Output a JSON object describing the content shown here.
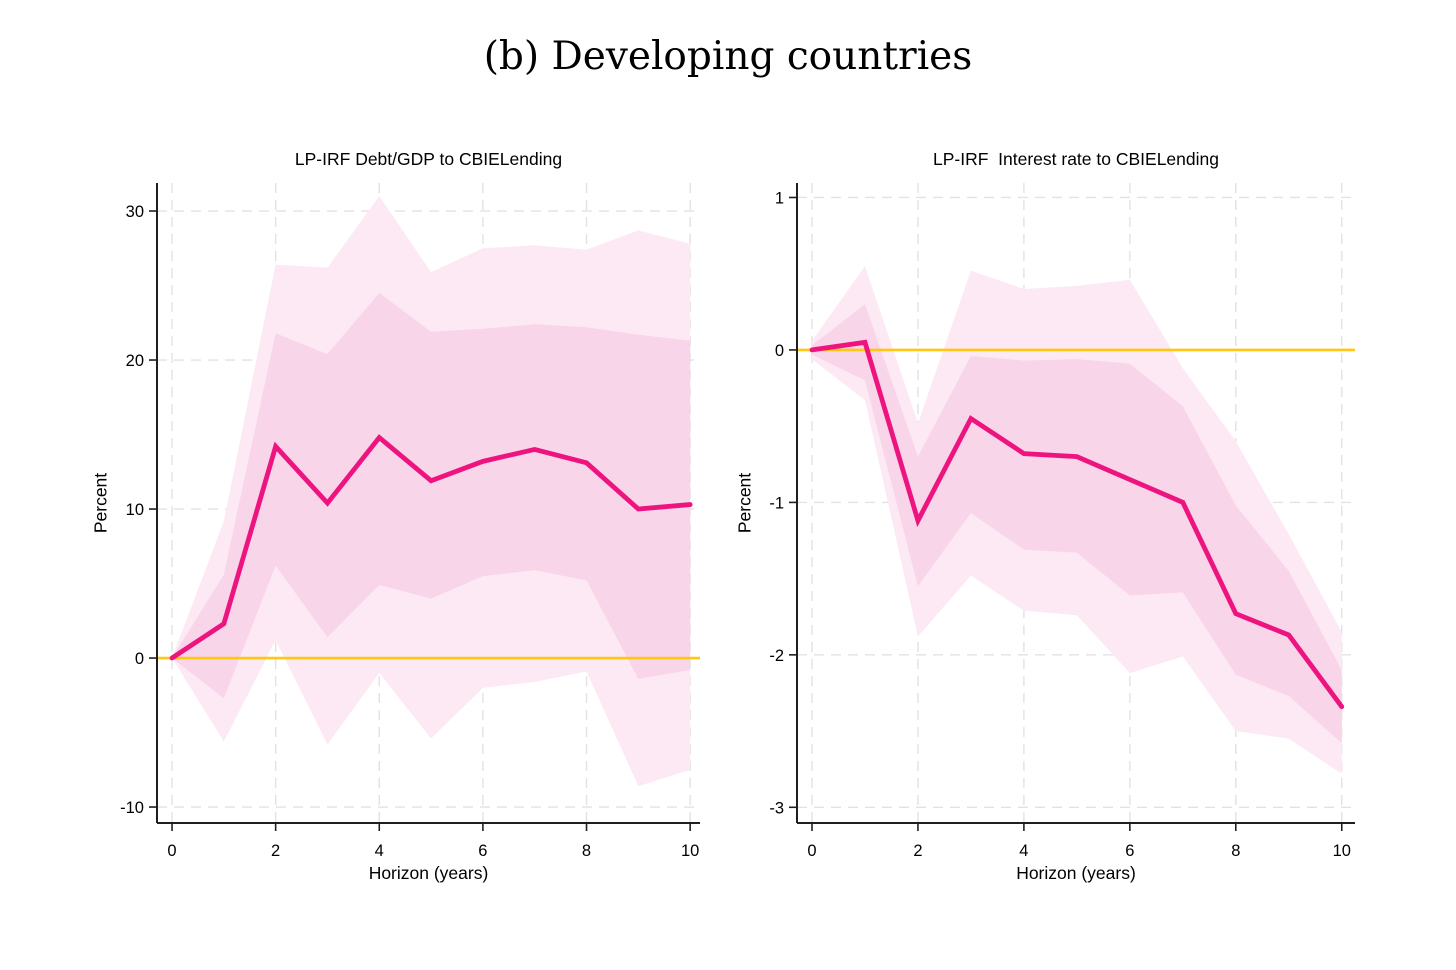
{
  "figure": {
    "title": "(b) Developing countries"
  },
  "colors": {
    "line": "#EE1480",
    "inner_band": "#F8D5E9",
    "outer_band": "#FCE9F4",
    "zero_line": "#FFC613",
    "grid": "#E2E2E2",
    "axis": "#1F1F1F",
    "text": "#000000"
  },
  "chart_data": [
    {
      "type": "line",
      "title": "LP-IRF Debt/GDP to CBIELending",
      "xlabel": "Horizon (years)",
      "ylabel": "Percent",
      "x": [
        0,
        1,
        2,
        3,
        4,
        5,
        6,
        7,
        8,
        9,
        10
      ],
      "xticks": [
        0,
        2,
        4,
        6,
        8,
        10
      ],
      "yticks": [
        30,
        20,
        10,
        0,
        -10
      ],
      "xlim": [
        -0.29,
        10.19
      ],
      "ylim": [
        -11.07,
        31.88
      ],
      "zero_line": 0,
      "grid": true,
      "legend": "none",
      "series": [
        {
          "name": "irf",
          "values": [
            0,
            2.3,
            14.2,
            10.4,
            14.8,
            11.9,
            13.2,
            14.0,
            13.1,
            10.0,
            10.3
          ]
        },
        {
          "name": "ci_inner_upper",
          "values": [
            0,
            5.6,
            21.8,
            20.4,
            24.5,
            21.9,
            22.1,
            22.4,
            22.2,
            21.7,
            21.3
          ]
        },
        {
          "name": "ci_inner_lower",
          "values": [
            0,
            -2.7,
            6.2,
            1.4,
            4.9,
            4.0,
            5.5,
            5.9,
            5.2,
            -1.4,
            -0.8
          ]
        },
        {
          "name": "ci_outer_upper",
          "values": [
            0,
            9.2,
            26.4,
            26.2,
            31.0,
            25.9,
            27.5,
            27.7,
            27.4,
            28.7,
            27.8
          ]
        },
        {
          "name": "ci_outer_lower",
          "values": [
            0,
            -5.6,
            1.2,
            -5.8,
            -1.0,
            -5.4,
            -2.0,
            -1.6,
            -0.9,
            -8.6,
            -7.5
          ]
        }
      ]
    },
    {
      "type": "line",
      "title": "LP-IRF  Interest rate to CBIELending",
      "xlabel": "Horizon (years)",
      "ylabel": "Percent",
      "x": [
        0,
        1,
        2,
        3,
        4,
        5,
        6,
        7,
        8,
        9,
        10
      ],
      "xticks": [
        0,
        2,
        4,
        6,
        8,
        10
      ],
      "yticks": [
        1,
        0,
        -1,
        -2,
        -3
      ],
      "xlim": [
        -0.283,
        10.25
      ],
      "ylim": [
        -3.103,
        1.095
      ],
      "zero_line": 0,
      "grid": true,
      "legend": "none",
      "series": [
        {
          "name": "irf",
          "values": [
            0,
            0.05,
            -1.12,
            -0.45,
            -0.68,
            -0.7,
            -0.85,
            -1.0,
            -1.73,
            -1.87,
            -2.34
          ]
        },
        {
          "name": "ci_inner_upper",
          "values": [
            0.03,
            0.3,
            -0.7,
            -0.04,
            -0.07,
            -0.06,
            -0.09,
            -0.37,
            -1.02,
            -1.45,
            -2.1
          ]
        },
        {
          "name": "ci_inner_lower",
          "values": [
            -0.03,
            -0.2,
            -1.55,
            -1.07,
            -1.31,
            -1.33,
            -1.61,
            -1.59,
            -2.13,
            -2.27,
            -2.58
          ]
        },
        {
          "name": "ci_outer_upper",
          "values": [
            0.06,
            0.55,
            -0.48,
            0.52,
            0.4,
            0.42,
            0.46,
            -0.12,
            -0.6,
            -1.21,
            -1.85
          ]
        },
        {
          "name": "ci_outer_lower",
          "values": [
            -0.06,
            -0.33,
            -1.88,
            -1.48,
            -1.71,
            -1.74,
            -2.12,
            -2.01,
            -2.5,
            -2.55,
            -2.78
          ]
        }
      ]
    }
  ]
}
